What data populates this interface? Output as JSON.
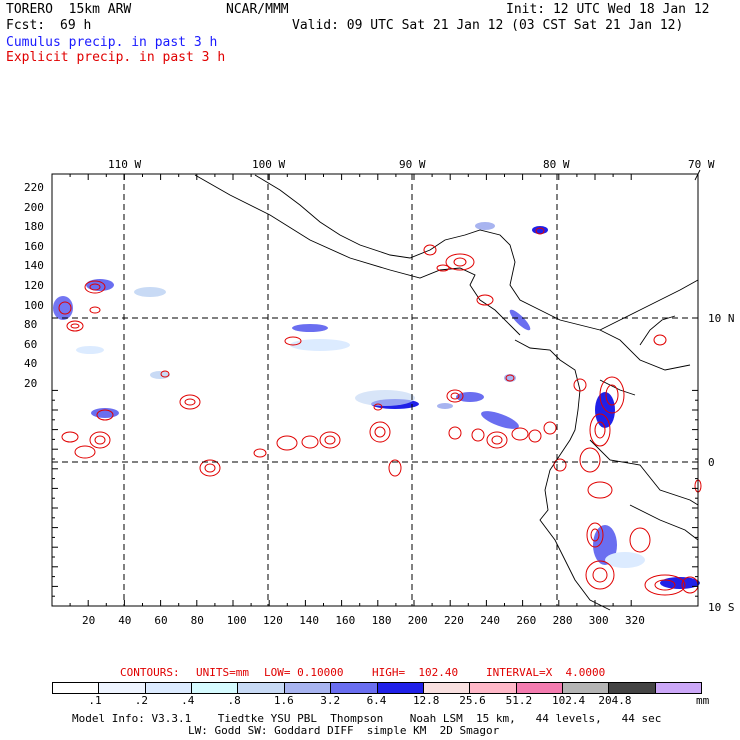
{
  "header": {
    "model": "TORERO  15km ARW",
    "org": "NCAR/MMM",
    "init": "Init: 12 UTC Wed 18 Jan 12",
    "fcst_label": "Fcst:",
    "fcst_value": "69 h",
    "valid": "Valid: 09 UTC Sat 21 Jan 12 (03 CST Sat 21 Jan 12)",
    "cumulus": "Cumulus precip. in past 3 h",
    "explicit": "Explicit precip. in past 3 h"
  },
  "colors": {
    "cumulus_text": "#1a1aff",
    "explicit_text": "#e00000",
    "contour": "#e00000",
    "coast": "#000000"
  },
  "top_lon_labels": [
    "110 W",
    "100 W",
    "90 W",
    "80 W",
    "70 W"
  ],
  "right_lat_labels": [
    "10 N",
    "0",
    "10 S"
  ],
  "y_ticks": [
    "220",
    "200",
    "180",
    "160",
    "140",
    "120",
    "100",
    "80",
    "60",
    "40",
    "20"
  ],
  "x_ticks": [
    "20",
    "40",
    "60",
    "80",
    "100",
    "120",
    "140",
    "160",
    "180",
    "200",
    "220",
    "240",
    "260",
    "280",
    "300",
    "320"
  ],
  "contours_line": {
    "label": "CONTOURS:",
    "units": "UNITS=mm",
    "low": "LOW= 0.10000",
    "high": "HIGH=  102.40",
    "interval": "INTERVAL=X  4.0000"
  },
  "legend": {
    "colors": [
      "#ffffff",
      "#eef4ff",
      "#dcebff",
      "#d6fbff",
      "#c8daf5",
      "#a8b4f0",
      "#6a6ef0",
      "#2020e8",
      "#f8e0e0",
      "#ffb8c8",
      "#f47cb0",
      "#b4b4b4",
      "#444444",
      "#cca8f8"
    ],
    "labels": [
      ".1",
      ".2",
      ".4",
      ".8",
      "1.6",
      "3.2",
      "6.4",
      "12.8",
      "25.6",
      "51.2",
      "102.4",
      "204.8"
    ],
    "unit": "mm"
  },
  "footer": {
    "line1": "Model Info: V3.3.1    Tiedtke YSU PBL  Thompson    Noah LSM  15 km,   44 levels,   44 sec",
    "line2": "LW: Godd SW: Goddard DIFF  simple KM  2D Smagor"
  }
}
